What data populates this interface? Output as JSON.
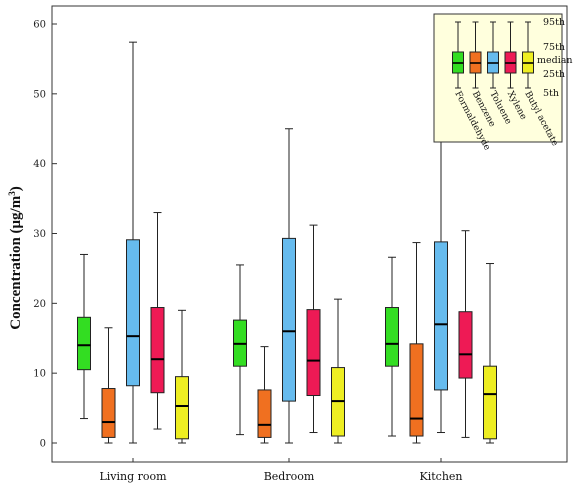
{
  "chart_data": {
    "type": "boxplot",
    "ylabel_main": "Concentration (μg/m",
    "ylabel_sup": "3",
    "ylabel_close": ")",
    "ylim": [
      0,
      60
    ],
    "yticks": [
      "0",
      "10",
      "20",
      "30",
      "40",
      "50",
      "60"
    ],
    "categories": [
      "Living room",
      "Bedroom",
      "Kitchen"
    ],
    "series": [
      {
        "name": "Formaldehyde",
        "color": "#33dd22",
        "boxes": [
          {
            "p5": 3.5,
            "p25": 10.5,
            "median": 14.0,
            "p75": 18.0,
            "p95": 27.0
          },
          {
            "p5": 1.2,
            "p25": 11.0,
            "median": 14.2,
            "p75": 17.6,
            "p95": 25.5
          },
          {
            "p5": 1.0,
            "p25": 11.0,
            "median": 14.2,
            "p75": 19.4,
            "p95": 26.6
          }
        ]
      },
      {
        "name": "Benzene",
        "color": "#f07020",
        "boxes": [
          {
            "p5": 0.0,
            "p25": 0.8,
            "median": 3.0,
            "p75": 7.8,
            "p95": 16.5
          },
          {
            "p5": 0.0,
            "p25": 0.8,
            "median": 2.6,
            "p75": 7.6,
            "p95": 13.8
          },
          {
            "p5": 0.0,
            "p25": 1.0,
            "median": 3.5,
            "p75": 14.2,
            "p95": 28.7
          }
        ]
      },
      {
        "name": "Toluene",
        "color": "#66bbee",
        "boxes": [
          {
            "p5": 0.0,
            "p25": 8.2,
            "median": 15.3,
            "p75": 29.1,
            "p95": 57.4
          },
          {
            "p5": 0.0,
            "p25": 6.0,
            "median": 16.0,
            "p75": 29.3,
            "p95": 45.0
          },
          {
            "p5": 1.5,
            "p25": 7.6,
            "median": 17.0,
            "p75": 28.8,
            "p95": 58.0
          }
        ]
      },
      {
        "name": "Xylene",
        "color": "#ee1a55",
        "boxes": [
          {
            "p5": 2.0,
            "p25": 7.2,
            "median": 12.0,
            "p75": 19.4,
            "p95": 33.0
          },
          {
            "p5": 1.5,
            "p25": 6.8,
            "median": 11.8,
            "p75": 19.1,
            "p95": 31.2
          },
          {
            "p5": 0.8,
            "p25": 9.3,
            "median": 12.7,
            "p75": 18.8,
            "p95": 30.4
          }
        ]
      },
      {
        "name": "Butyl acetate",
        "color": "#eeee22",
        "boxes": [
          {
            "p5": 0.0,
            "p25": 0.6,
            "median": 5.3,
            "p75": 9.5,
            "p95": 19.0
          },
          {
            "p5": 0.0,
            "p25": 1.0,
            "median": 6.0,
            "p75": 10.8,
            "p95": 20.6
          },
          {
            "p5": 0.0,
            "p25": 0.6,
            "median": 7.0,
            "p75": 11.0,
            "p95": 25.7
          }
        ]
      }
    ],
    "legend": {
      "placement": "top-right",
      "percentile_labels": [
        "95th",
        "75th",
        "median",
        "25th",
        "5th"
      ],
      "background": "#ffffdd"
    }
  }
}
